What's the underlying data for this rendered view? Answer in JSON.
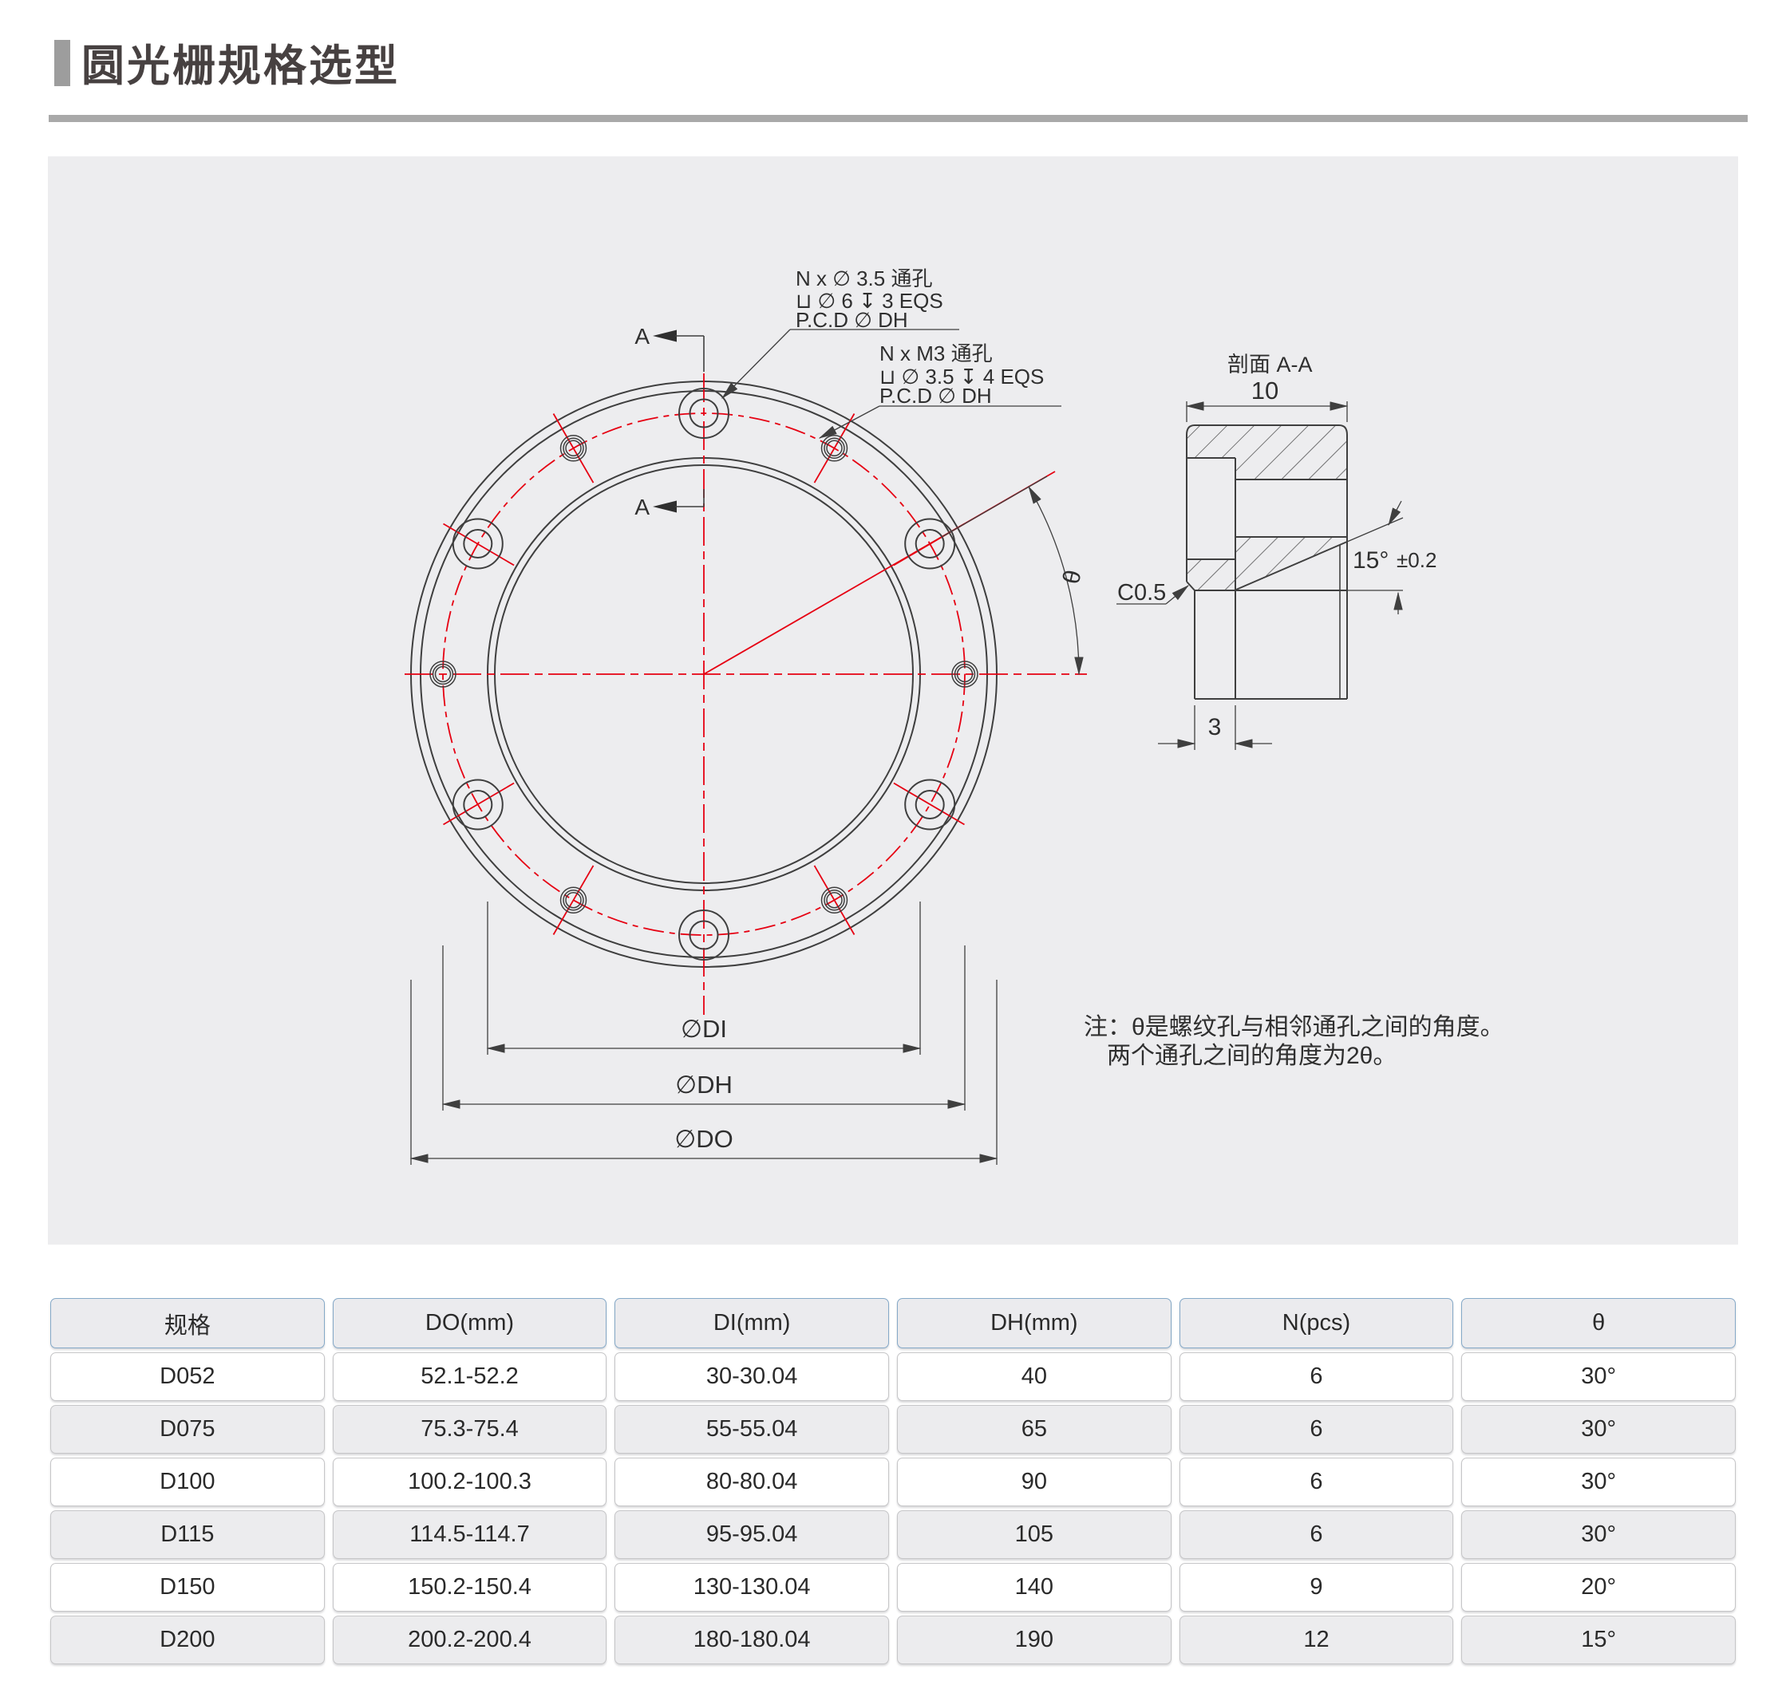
{
  "page": {
    "title": "圆光栅规格选型"
  },
  "drawing": {
    "callout_counterbore": {
      "line1": "N x  ∅ 3.5 通孔",
      "line2": "⊔ ∅ 6  ↧ 3 EQS",
      "line3": "P.C.D  ∅ DH"
    },
    "callout_threaded": {
      "line1": "N x M3 通孔",
      "line2": "⊔ ∅ 3.5  ↧ 4 EQS",
      "line3": "P.C.D  ∅ DH"
    },
    "section_marker": "A",
    "theta": "θ",
    "dim_di": "∅DI",
    "dim_dh": "∅DH",
    "dim_do": "∅DO",
    "section_view": {
      "title": "剖面 A-A",
      "width": "10",
      "step": "3",
      "chamfer": "C0.5",
      "angle": "15°",
      "tolerance": "±0.2"
    },
    "note": {
      "line1": "注：θ是螺纹孔与相邻通孔之间的角度。",
      "line2": "两个通孔之间的角度为2θ。"
    },
    "colors": {
      "line": "#3f3f3f",
      "centerline_red": "#e60012",
      "panel_bg": "#ededef"
    }
  },
  "table": {
    "columns": [
      "规格",
      "DO(mm)",
      "DI(mm)",
      "DH(mm)",
      "N(pcs)",
      "θ"
    ],
    "rows": [
      [
        "D052",
        "52.1-52.2",
        "30-30.04",
        "40",
        "6",
        "30°"
      ],
      [
        "D075",
        "75.3-75.4",
        "55-55.04",
        "65",
        "6",
        "30°"
      ],
      [
        "D100",
        "100.2-100.3",
        "80-80.04",
        "90",
        "6",
        "30°"
      ],
      [
        "D115",
        "114.5-114.7",
        "95-95.04",
        "105",
        "6",
        "30°"
      ],
      [
        "D150",
        "150.2-150.4",
        "130-130.04",
        "140",
        "9",
        "20°"
      ],
      [
        "D200",
        "200.2-200.4",
        "180-180.04",
        "190",
        "12",
        "15°"
      ]
    ]
  }
}
